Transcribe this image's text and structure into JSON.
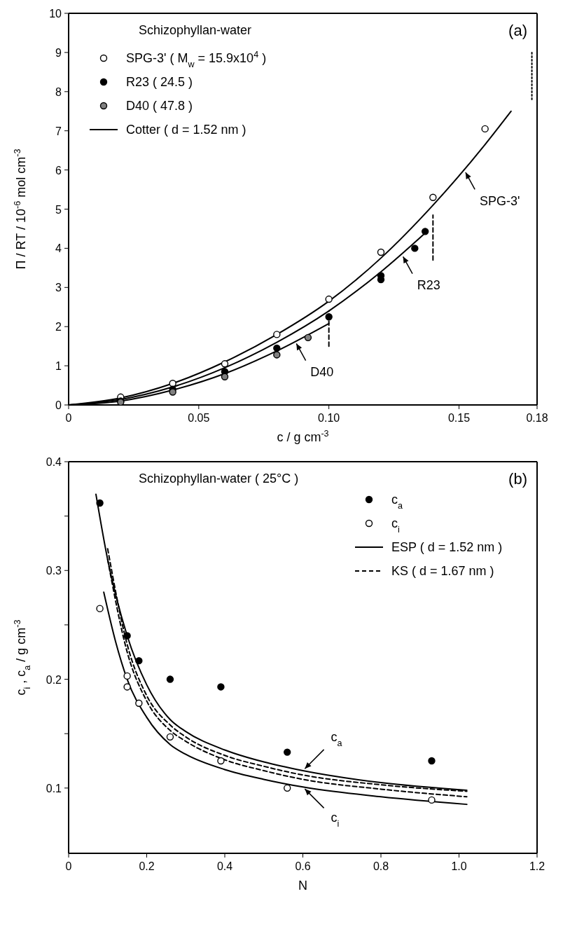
{
  "chart_data": [
    {
      "type": "scatter",
      "title": "Schizophyllan-water",
      "xlabel": "c / g cm$^{-3}$",
      "ylabel": "Π / RT / 10$^{-6}$ mol cm$^{-3}$",
      "xlim": [
        0,
        0.18
      ],
      "xticks": [
        0,
        0.05,
        {
          "value": 0.1,
          "label": "0.10"
        },
        0.15,
        0.18
      ],
      "ylim": [
        0,
        10
      ],
      "yticks": [
        0,
        1,
        2,
        3,
        4,
        5,
        6,
        7,
        8,
        9,
        10
      ],
      "legend": "top left",
      "annotations": [
        "(a)",
        {
          "text": "SPG-3'",
          "x": 0.152,
          "y": 6.0
        },
        {
          "text": "R23",
          "x": 0.128,
          "y": 3.85
        },
        {
          "text": "D40",
          "x": 0.087,
          "y": 1.63
        }
      ],
      "series": [
        {
          "name": "SPG-3' ( M$_{w}$ = 15.9x10$^{4}$ )",
          "marker": "circle",
          "color": "#ffffff",
          "x": [
            0.02,
            0.04,
            0.06,
            0.08,
            0.1,
            0.12,
            0.14,
            0.16
          ],
          "values": [
            0.2,
            0.55,
            1.05,
            1.8,
            2.7,
            3.9,
            5.3,
            7.05
          ]
        },
        {
          "name": "R23 ( 24.5 )",
          "marker": "circle",
          "color": "#000000",
          "x": [
            0.02,
            0.04,
            0.06,
            0.08,
            0.1,
            0.12,
            0.12,
            0.133,
            0.137
          ],
          "values": [
            0.1,
            0.4,
            0.85,
            1.45,
            2.25,
            3.2,
            3.3,
            4.0,
            4.43
          ]
        },
        {
          "name": "D40 ( 47.8 )",
          "marker": "circle",
          "color": "#808080",
          "x": [
            0.02,
            0.04,
            0.06,
            0.08,
            0.092
          ],
          "values": [
            0.07,
            0.33,
            0.72,
            1.28,
            1.72
          ]
        },
        {
          "name": "Cotter ( d = 1.52 nm )",
          "type": "line",
          "marker": "none",
          "line_style": "solid",
          "color": "#000000",
          "x": [
            0,
            0.02,
            0.04,
            0.06,
            0.08,
            0.1,
            0.12,
            0.14,
            0.16,
            0.17
          ],
          "values": [
            0,
            0.18,
            0.55,
            1.1,
            1.8,
            2.65,
            3.75,
            5.1,
            6.65,
            7.5
          ]
        },
        {
          "type": "line",
          "marker": "none",
          "line_style": "solid",
          "color": "#000000",
          "x": [
            0,
            0.02,
            0.04,
            0.06,
            0.08,
            0.1,
            0.12,
            0.138
          ],
          "values": [
            0,
            0.14,
            0.46,
            0.95,
            1.6,
            2.4,
            3.4,
            4.45
          ]
        },
        {
          "type": "line",
          "marker": "none",
          "line_style": "solid",
          "color": "#000000",
          "x": [
            0,
            0.02,
            0.04,
            0.06,
            0.08,
            0.1
          ],
          "values": [
            0,
            0.1,
            0.38,
            0.8,
            1.38,
            2.08
          ]
        },
        {
          "type": "line",
          "marker": "none",
          "line_style": "dotted",
          "color": "#000000",
          "x": [
            0.178,
            0.178
          ],
          "values": [
            7.8,
            9.0
          ]
        },
        {
          "type": "line",
          "marker": "none",
          "line_style": "dashed",
          "color": "#000000",
          "x": [
            0.14,
            0.14
          ],
          "values": [
            3.7,
            4.85
          ]
        },
        {
          "type": "line",
          "marker": "none",
          "line_style": "dashed",
          "color": "#000000",
          "x": [
            0.1,
            0.1
          ],
          "values": [
            1.5,
            2.4
          ]
        }
      ]
    },
    {
      "type": "scatter",
      "title": "Schizophyllan-water ( 25°C )",
      "xlabel": "N",
      "ylabel": "c$_{i}$ , c$_{a}$ / g cm$^{-3}$",
      "xlim": [
        0,
        1.2
      ],
      "xticks": [
        0,
        0.2,
        0.4,
        0.6,
        0.8,
        {
          "value": 1,
          "label": "1.0"
        },
        1.2
      ],
      "ylim": [
        0.04,
        0.4
      ],
      "yticks": [
        0.1,
        {
          "value": 0.15,
          "label": null
        },
        0.2,
        {
          "value": 0.25,
          "label": null
        },
        0.3,
        {
          "value": 0.35,
          "label": null
        },
        0.4
      ],
      "legend": "top right",
      "annotations": [
        "(b)",
        {
          "text": "c$_{a}$",
          "x": 0.6,
          "y": 0.116
        },
        {
          "text": "c$_{i}$",
          "x": 0.6,
          "y": 0.101
        }
      ],
      "series": [
        {
          "name": "c$_{a}$",
          "marker": "circle",
          "color": "#000000",
          "x": [
            0.08,
            0.15,
            0.18,
            0.26,
            0.39,
            0.56,
            0.93
          ],
          "values": [
            0.362,
            0.24,
            0.217,
            0.2,
            0.193,
            0.133,
            0.125
          ]
        },
        {
          "name": "c$_{i}$",
          "marker": "circle",
          "color": "#ffffff",
          "x": [
            0.08,
            0.15,
            0.15,
            0.18,
            0.26,
            0.39,
            0.56,
            0.93
          ],
          "values": [
            0.265,
            0.203,
            0.193,
            0.178,
            0.147,
            0.125,
            0.1,
            0.089
          ]
        },
        {
          "name": "ESP ( d = 1.52 nm )",
          "type": "line",
          "marker": "none",
          "line_style": "solid",
          "color": "#000000",
          "x": [
            0.07,
            0.1,
            0.15,
            0.2,
            0.26,
            0.3,
            0.4,
            0.5,
            0.6,
            0.8,
            1.02
          ],
          "values": [
            0.37,
            0.31,
            0.24,
            0.195,
            0.163,
            0.152,
            0.135,
            0.124,
            0.116,
            0.105,
            0.098
          ]
        },
        {
          "type": "line",
          "marker": "none",
          "line_style": "solid",
          "color": "#000000",
          "x": [
            0.09,
            0.12,
            0.15,
            0.2,
            0.26,
            0.3,
            0.4,
            0.5,
            0.6,
            0.8,
            1.02
          ],
          "values": [
            0.28,
            0.235,
            0.2,
            0.165,
            0.14,
            0.131,
            0.117,
            0.108,
            0.101,
            0.092,
            0.085
          ]
        },
        {
          "name": "KS ( d = 1.67 nm )",
          "type": "line",
          "marker": "none",
          "line_style": "dashed",
          "color": "#000000",
          "x": [
            0.1,
            0.15,
            0.2,
            0.26,
            0.3,
            0.4,
            0.5,
            0.6,
            0.8,
            1.02
          ],
          "values": [
            0.32,
            0.232,
            0.185,
            0.158,
            0.147,
            0.13,
            0.12,
            0.112,
            0.103,
            0.097
          ]
        },
        {
          "type": "line",
          "marker": "none",
          "line_style": "dashed",
          "color": "#000000",
          "x": [
            0.1,
            0.15,
            0.2,
            0.26,
            0.3,
            0.4,
            0.5,
            0.6,
            0.8,
            1.02
          ],
          "values": [
            0.31,
            0.225,
            0.18,
            0.153,
            0.143,
            0.126,
            0.116,
            0.108,
            0.099,
            0.092
          ]
        }
      ]
    }
  ]
}
